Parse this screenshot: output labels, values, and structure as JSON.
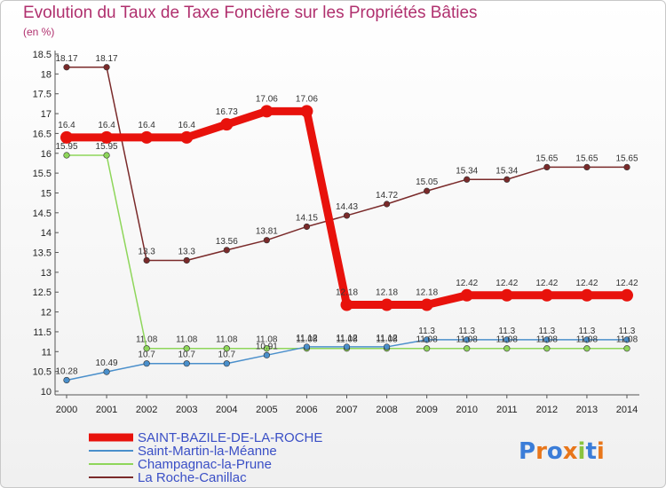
{
  "chart_data": {
    "type": "line",
    "title": "Evolution du Taux de Taxe Foncière sur les Propriétés Bâties",
    "unit": "(en %)",
    "x": [
      "2000",
      "2001",
      "2002",
      "2003",
      "2004",
      "2005",
      "2006",
      "2007",
      "2008",
      "2009",
      "2010",
      "2011",
      "2012",
      "2013",
      "2014"
    ],
    "ylim": [
      10,
      18.5
    ],
    "yticks": [
      "10",
      "10.5",
      "11",
      "11.5",
      "12",
      "12.5",
      "13",
      "13.5",
      "14",
      "14.5",
      "15",
      "15.5",
      "16",
      "16.5",
      "17",
      "17.5",
      "18",
      "18.5"
    ],
    "series": [
      {
        "name": "SAINT-BAZILE-DE-LA-ROCHE",
        "color": "#e8120c",
        "values": [
          16.4,
          16.4,
          16.4,
          16.4,
          16.73,
          17.06,
          17.06,
          12.18,
          12.18,
          12.18,
          12.42,
          12.42,
          12.42,
          12.42,
          12.42
        ],
        "labels": [
          "16.4",
          "16.4",
          "16.4",
          "16.4",
          "16.73",
          "17.06",
          "17.06",
          "12.18",
          "12.18",
          "12.18",
          "12.42",
          "12.42",
          "12.42",
          "12.42",
          "12.42"
        ]
      },
      {
        "name": "Saint-Martin-la-Méanne",
        "color": "#4a8fcb",
        "values": [
          10.28,
          10.49,
          10.7,
          10.7,
          10.7,
          10.91,
          11.12,
          11.12,
          11.12,
          11.3,
          11.3,
          11.3,
          11.3,
          11.3,
          11.3
        ],
        "labels": [
          "10.28",
          "10.49",
          "10.7",
          "10.7",
          "10.7",
          "10.91",
          "11.12",
          "11.12",
          "11.12",
          "11.3",
          "11.3",
          "11.3",
          "11.3",
          "11.3",
          "11.3"
        ]
      },
      {
        "name": "Champagnac-la-Prune",
        "color": "#8ed65a",
        "values": [
          15.95,
          15.95,
          11.08,
          11.08,
          11.08,
          11.08,
          11.08,
          11.08,
          11.08,
          11.08,
          11.08,
          11.08,
          11.08,
          11.08,
          11.08
        ],
        "labels": [
          "15.95",
          "15.95",
          "11.08",
          "11.08",
          "11.08",
          "11.08",
          "11.08",
          "11.08",
          "11.08",
          "11.08",
          "11.08",
          "11.08",
          "11.08",
          "11.08",
          "11.08"
        ]
      },
      {
        "name": "La Roche-Canillac",
        "color": "#7a2a2a",
        "values": [
          18.17,
          18.17,
          13.3,
          13.3,
          13.56,
          13.81,
          14.15,
          14.43,
          14.72,
          15.05,
          15.34,
          15.34,
          15.65,
          15.65,
          15.65
        ],
        "labels": [
          "18.17",
          "18.17",
          "13.3",
          "13.3",
          "13.56",
          "13.81",
          "14.15",
          "14.43",
          "14.72",
          "15.05",
          "15.34",
          "15.34",
          "15.65",
          "15.65",
          "15.65"
        ]
      }
    ],
    "grid": false,
    "legend_position": "bottom-left"
  },
  "logo": {
    "text": "Proxiti"
  }
}
